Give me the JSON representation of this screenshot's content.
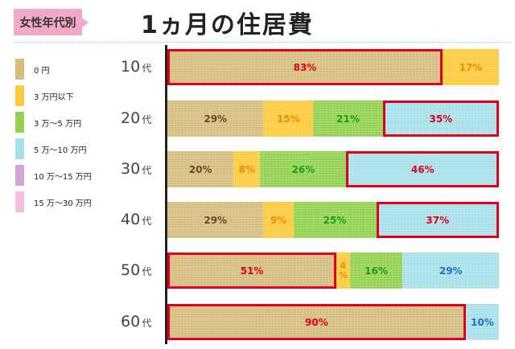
{
  "header": {
    "tag": "女性年代別",
    "title": "1ヵ月の住居費"
  },
  "colors": {
    "0yen": "#d4bd7f",
    "under3man": "#fdcb3d",
    "3to5man": "#93d150",
    "5to10man": "#a8e0ea",
    "10to15man": "#d2a6d6",
    "15to30man": "#f7bde0",
    "highlight": "#e0001b"
  },
  "legend": [
    {
      "label": "0 円",
      "color": "#d4bd7f"
    },
    {
      "label": "3 万円以下",
      "color": "#fdcb3d"
    },
    {
      "label": "3 万～5 万円",
      "color": "#93d150"
    },
    {
      "label": "5 万～10 万円",
      "color": "#a8e0ea"
    },
    {
      "label": "10 万～15 万円",
      "color": "#d2a6d6"
    },
    {
      "label": "15 万～30 万円",
      "color": "#f7bde0"
    }
  ],
  "rows": [
    {
      "num": "10",
      "dai": "代"
    },
    {
      "num": "20",
      "dai": "代"
    },
    {
      "num": "30",
      "dai": "代"
    },
    {
      "num": "40",
      "dai": "代"
    },
    {
      "num": "50",
      "dai": "代"
    },
    {
      "num": "60",
      "dai": "代"
    }
  ],
  "chart_data": {
    "type": "bar",
    "orientation": "horizontal-stacked-100",
    "title": "1ヵ月の住居費",
    "subtitle": "女性年代別",
    "categories": [
      "10代",
      "20代",
      "30代",
      "40代",
      "50代",
      "60代"
    ],
    "series": [
      {
        "name": "0 円",
        "values": [
          83,
          29,
          20,
          29,
          51,
          90
        ]
      },
      {
        "name": "3 万円以下",
        "values": [
          17,
          15,
          8,
          9,
          4,
          0
        ]
      },
      {
        "name": "3 万～5 万円",
        "values": [
          0,
          21,
          26,
          25,
          16,
          0
        ]
      },
      {
        "name": "5 万～10 万円",
        "values": [
          0,
          35,
          46,
          37,
          29,
          10
        ]
      },
      {
        "name": "10 万～15 万円",
        "values": [
          0,
          0,
          0,
          0,
          0,
          0
        ]
      },
      {
        "name": "15 万～30 万円",
        "values": [
          0,
          0,
          0,
          0,
          0,
          0
        ]
      }
    ],
    "labels": {
      "10代": [
        "83%",
        "17%"
      ],
      "20代": [
        "29%",
        "15%",
        "21%",
        "35%"
      ],
      "30代": [
        "20%",
        "8%",
        "26%",
        "46%"
      ],
      "40代": [
        "29%",
        "9%",
        "25%",
        "37%"
      ],
      "50代": [
        "51%",
        "4%",
        "16%",
        "29%"
      ],
      "60代": [
        "90%",
        "10%"
      ]
    },
    "highlighted": {
      "10代": "0 円",
      "20代": "5 万～10 万円",
      "30代": "5 万～10 万円",
      "40代": "5 万～10 万円",
      "50代": "0 円",
      "60代": "0 円"
    },
    "xlim": [
      0,
      100
    ],
    "legend_position": "left",
    "grid": false
  },
  "bars": [
    {
      "segments": [
        {
          "pct": "83%",
          "w": 83,
          "bg": "#d4bd7f",
          "fg": "#e0001b",
          "hl": true
        },
        {
          "pct": "17%",
          "w": 17,
          "bg": "#fdcb3d",
          "fg": "#f08a00",
          "hl": false
        }
      ]
    },
    {
      "segments": [
        {
          "pct": "29%",
          "w": 29,
          "bg": "#d4bd7f",
          "fg": "#6b4a2a",
          "hl": false
        },
        {
          "pct": "15%",
          "w": 15,
          "bg": "#fdcb3d",
          "fg": "#f08a00",
          "hl": false
        },
        {
          "pct": "21%",
          "w": 21,
          "bg": "#93d150",
          "fg": "#1e9e1e",
          "hl": false
        },
        {
          "pct": "35%",
          "w": 35,
          "bg": "#a8e0ea",
          "fg": "#e0001b",
          "hl": true
        }
      ]
    },
    {
      "segments": [
        {
          "pct": "20%",
          "w": 20,
          "bg": "#d4bd7f",
          "fg": "#6b4a2a",
          "hl": false
        },
        {
          "pct": "8%",
          "w": 8,
          "bg": "#fdcb3d",
          "fg": "#f08a00",
          "hl": false
        },
        {
          "pct": "26%",
          "w": 26,
          "bg": "#93d150",
          "fg": "#1e9e1e",
          "hl": false
        },
        {
          "pct": "46%",
          "w": 46,
          "bg": "#a8e0ea",
          "fg": "#e0001b",
          "hl": true
        }
      ]
    },
    {
      "segments": [
        {
          "pct": "29%",
          "w": 29,
          "bg": "#d4bd7f",
          "fg": "#6b4a2a",
          "hl": false
        },
        {
          "pct": "9%",
          "w": 9,
          "bg": "#fdcb3d",
          "fg": "#f08a00",
          "hl": false
        },
        {
          "pct": "25%",
          "w": 25,
          "bg": "#93d150",
          "fg": "#1e9e1e",
          "hl": false
        },
        {
          "pct": "37%",
          "w": 37,
          "bg": "#a8e0ea",
          "fg": "#e0001b",
          "hl": true
        }
      ]
    },
    {
      "segments": [
        {
          "pct": "51%",
          "w": 51,
          "bg": "#d4bd7f",
          "fg": "#e0001b",
          "hl": true
        },
        {
          "pct": "4%",
          "w": 4,
          "bg": "#fdcb3d",
          "fg": "#f08a00",
          "hl": false,
          "narrow": true
        },
        {
          "pct": "16%",
          "w": 16,
          "bg": "#93d150",
          "fg": "#1e9e1e",
          "hl": false
        },
        {
          "pct": "29%",
          "w": 29,
          "bg": "#a8e0ea",
          "fg": "#1f6fc7",
          "hl": false
        }
      ]
    },
    {
      "segments": [
        {
          "pct": "90%",
          "w": 90,
          "bg": "#d4bd7f",
          "fg": "#e0001b",
          "hl": true
        },
        {
          "pct": "10%",
          "w": 10,
          "bg": "#a8e0ea",
          "fg": "#1f6fc7",
          "hl": false
        }
      ]
    }
  ]
}
